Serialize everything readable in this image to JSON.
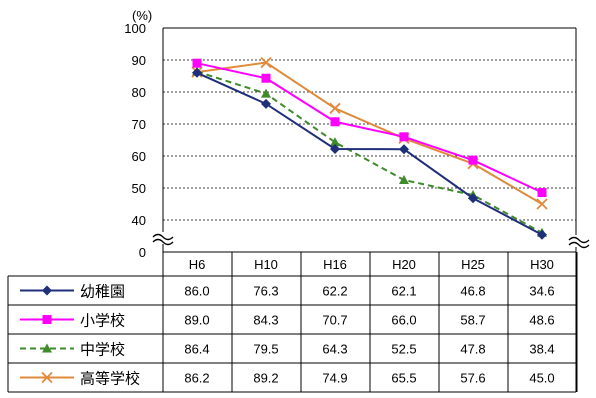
{
  "chart_data": {
    "type": "line",
    "ylabel": "(%)",
    "ylim": [
      0,
      100
    ],
    "yticks": [
      0,
      40,
      50,
      60,
      70,
      80,
      90,
      100
    ],
    "axis_break": "between 0 and 40",
    "grid": true,
    "legend_placement": "data-table-left",
    "categories": [
      "H6",
      "H10",
      "H16",
      "H20",
      "H25",
      "H30"
    ],
    "series": [
      {
        "name": "幼稚園",
        "values": [
          86.0,
          76.3,
          62.2,
          62.1,
          46.8,
          34.6
        ],
        "labels": [
          "86.0",
          "76.3",
          "62.2",
          "62.1",
          "46.8",
          "34.6"
        ],
        "color": "#1f2f7a",
        "marker": "diamond",
        "dash": "solid"
      },
      {
        "name": "小学校",
        "values": [
          89.0,
          84.3,
          70.7,
          66.0,
          58.7,
          48.6
        ],
        "labels": [
          "89.0",
          "84.3",
          "70.7",
          "66.0",
          "58.7",
          "48.6"
        ],
        "color": "#ff00ff",
        "marker": "square",
        "dash": "solid"
      },
      {
        "name": "中学校",
        "values": [
          86.4,
          79.5,
          64.3,
          52.5,
          47.8,
          38.4
        ],
        "labels": [
          "86.4",
          "79.5",
          "64.3",
          "52.5",
          "47.8",
          "38.4"
        ],
        "color": "#3f8a2a",
        "marker": "triangle",
        "dash": "dashed"
      },
      {
        "name": "高等学校",
        "values": [
          86.2,
          89.2,
          74.9,
          65.5,
          57.6,
          45.0
        ],
        "labels": [
          "86.2",
          "89.2",
          "74.9",
          "65.5",
          "57.6",
          "45.0"
        ],
        "color": "#e08a3c",
        "marker": "x",
        "dash": "solid"
      }
    ]
  }
}
